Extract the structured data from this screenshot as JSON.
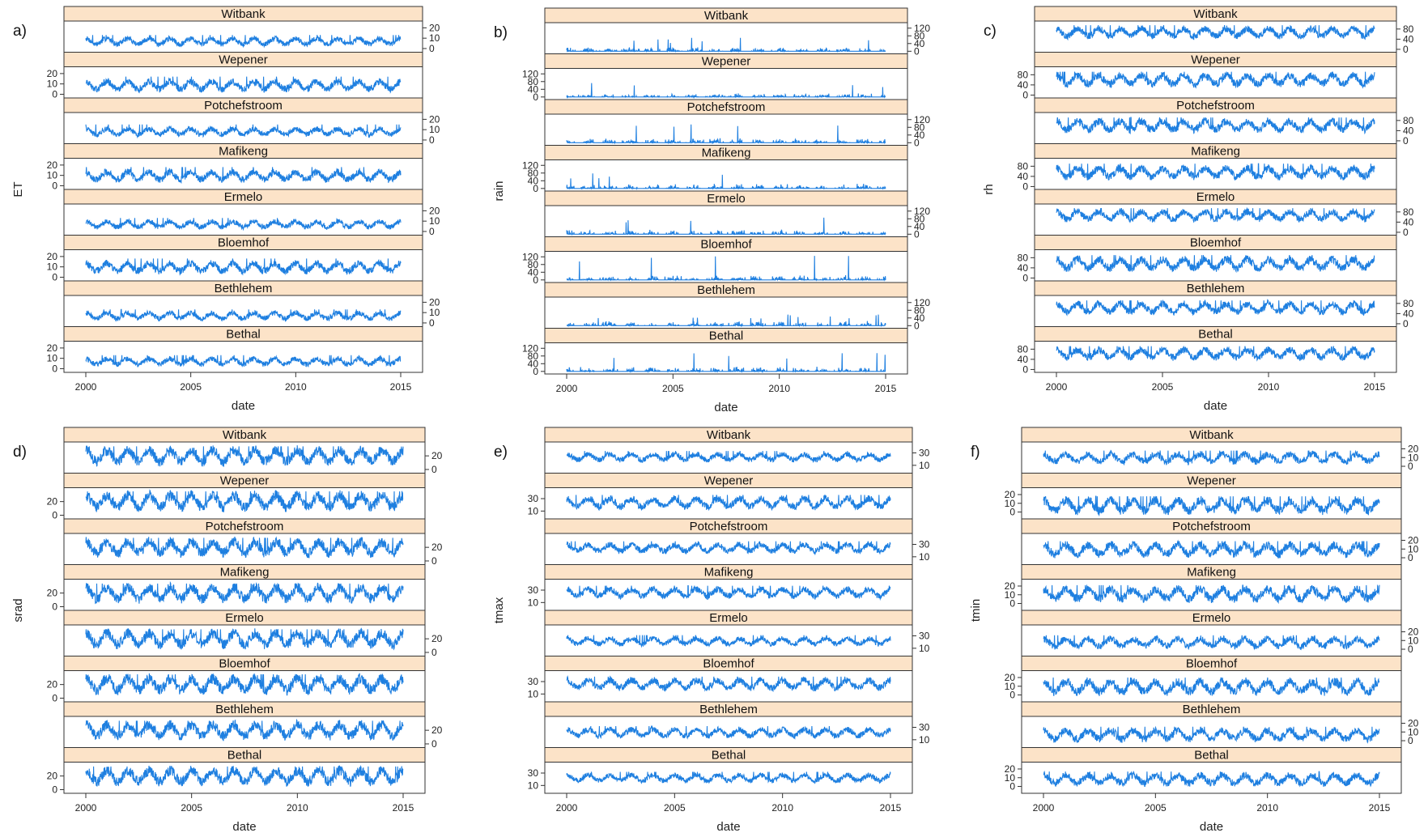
{
  "figure": {
    "panel_letters": [
      "a)",
      "b)",
      "c)",
      "d)",
      "e)",
      "f)"
    ],
    "series_color": "#1e7fe0",
    "strip_color": "#fce3c8"
  },
  "chart_data": [
    {
      "type": "line",
      "panel": "a)",
      "ylabel": "ET",
      "xlabel": "date",
      "x_range": [
        2000,
        2015
      ],
      "x_ticks": [
        2000,
        2005,
        2010,
        2015
      ],
      "y_ticks": [
        0,
        10,
        20
      ],
      "ylim": [
        -2,
        25
      ],
      "seasonal": true,
      "series": [
        {
          "name": "Witbank",
          "low": 2,
          "high": 11,
          "spike": 13
        },
        {
          "name": "Wepener",
          "low": 2,
          "high": 14,
          "spike": 17
        },
        {
          "name": "Potchefstroom",
          "low": 3,
          "high": 12,
          "spike": 15
        },
        {
          "name": "Mafikeng",
          "low": 3,
          "high": 15,
          "spike": 18
        },
        {
          "name": "Ermelo",
          "low": 2,
          "high": 11,
          "spike": 13
        },
        {
          "name": "Bloemhof",
          "low": 3,
          "high": 15,
          "spike": 18
        },
        {
          "name": "Bethlehem",
          "low": 2,
          "high": 11,
          "spike": 13
        },
        {
          "name": "Bethal",
          "low": 2,
          "high": 11,
          "spike": 13
        }
      ]
    },
    {
      "type": "line",
      "panel": "b)",
      "ylabel": "rain",
      "xlabel": "date",
      "x_range": [
        2000,
        2015
      ],
      "x_ticks": [
        2000,
        2005,
        2010,
        2015
      ],
      "y_ticks": [
        0,
        40,
        80,
        120
      ],
      "ylim": [
        -5,
        140
      ],
      "seasonal": false,
      "series": [
        {
          "name": "Witbank",
          "low": 0,
          "high": 25,
          "spike": 70
        },
        {
          "name": "Wepener",
          "low": 0,
          "high": 20,
          "spike": 85
        },
        {
          "name": "Potchefstroom",
          "low": 0,
          "high": 25,
          "spike": 120
        },
        {
          "name": "Mafikeng",
          "low": 0,
          "high": 25,
          "spike": 80
        },
        {
          "name": "Ermelo",
          "low": 0,
          "high": 25,
          "spike": 100
        },
        {
          "name": "Bloemhof",
          "low": 0,
          "high": 25,
          "spike": 125
        },
        {
          "name": "Bethlehem",
          "low": 0,
          "high": 25,
          "spike": 60
        },
        {
          "name": "Bethal",
          "low": 0,
          "high": 25,
          "spike": 110
        }
      ]
    },
    {
      "type": "line",
      "panel": "c)",
      "ylabel": "rh",
      "xlabel": "date",
      "x_range": [
        2000,
        2015
      ],
      "x_ticks": [
        2000,
        2005,
        2010,
        2015
      ],
      "y_ticks": [
        0,
        40,
        80
      ],
      "ylim": [
        -5,
        105
      ],
      "seasonal": true,
      "series": [
        {
          "name": "Witbank",
          "low": 40,
          "high": 88,
          "spike": 95
        },
        {
          "name": "Wepener",
          "low": 30,
          "high": 85,
          "spike": 92
        },
        {
          "name": "Potchefstroom",
          "low": 30,
          "high": 85,
          "spike": 92
        },
        {
          "name": "Mafikeng",
          "low": 25,
          "high": 80,
          "spike": 90
        },
        {
          "name": "Ermelo",
          "low": 40,
          "high": 88,
          "spike": 95
        },
        {
          "name": "Bloemhof",
          "low": 25,
          "high": 82,
          "spike": 90
        },
        {
          "name": "Bethlehem",
          "low": 35,
          "high": 85,
          "spike": 92
        },
        {
          "name": "Bethal",
          "low": 35,
          "high": 85,
          "spike": 92
        }
      ]
    },
    {
      "type": "line",
      "panel": "d)",
      "ylabel": "srad",
      "xlabel": "date",
      "x_range": [
        2000,
        2015
      ],
      "x_ticks": [
        2000,
        2005,
        2010,
        2015
      ],
      "y_ticks": [
        0,
        20
      ],
      "ylim": [
        -3,
        38
      ],
      "seasonal": true,
      "series": [
        {
          "name": "Witbank",
          "low": 5,
          "high": 32,
          "spike": 34
        },
        {
          "name": "Wepener",
          "low": 5,
          "high": 33,
          "spike": 35
        },
        {
          "name": "Potchefstroom",
          "low": 5,
          "high": 32,
          "spike": 34
        },
        {
          "name": "Mafikeng",
          "low": 5,
          "high": 32,
          "spike": 34
        },
        {
          "name": "Ermelo",
          "low": 5,
          "high": 32,
          "spike": 34
        },
        {
          "name": "Bloemhof",
          "low": 5,
          "high": 33,
          "spike": 35
        },
        {
          "name": "Bethlehem",
          "low": 5,
          "high": 32,
          "spike": 34
        },
        {
          "name": "Bethal",
          "low": 5,
          "high": 32,
          "spike": 34
        }
      ]
    },
    {
      "type": "line",
      "panel": "e)",
      "ylabel": "tmax",
      "xlabel": "date",
      "x_range": [
        2000,
        2015
      ],
      "x_ticks": [
        2000,
        2005,
        2010,
        2015
      ],
      "y_ticks": [
        10,
        30
      ],
      "ylim": [
        0,
        45
      ],
      "seasonal": true,
      "series": [
        {
          "name": "Witbank",
          "low": 15,
          "high": 30,
          "spike": 33
        },
        {
          "name": "Wepener",
          "low": 12,
          "high": 33,
          "spike": 36
        },
        {
          "name": "Potchefstroom",
          "low": 15,
          "high": 32,
          "spike": 35
        },
        {
          "name": "Mafikeng",
          "low": 16,
          "high": 34,
          "spike": 37
        },
        {
          "name": "Ermelo",
          "low": 13,
          "high": 28,
          "spike": 31
        },
        {
          "name": "Bloemhof",
          "low": 15,
          "high": 35,
          "spike": 38
        },
        {
          "name": "Bethlehem",
          "low": 12,
          "high": 29,
          "spike": 32
        },
        {
          "name": "Bethal",
          "low": 14,
          "high": 29,
          "spike": 32
        }
      ]
    },
    {
      "type": "line",
      "panel": "f)",
      "ylabel": "tmin",
      "xlabel": "date",
      "x_range": [
        2000,
        2015
      ],
      "x_ticks": [
        2000,
        2005,
        2010,
        2015
      ],
      "y_ticks": [
        0,
        10,
        20
      ],
      "ylim": [
        -6,
        26
      ],
      "seasonal": true,
      "series": [
        {
          "name": "Witbank",
          "low": 2,
          "high": 16,
          "spike": 18
        },
        {
          "name": "Wepener",
          "low": -3,
          "high": 16,
          "spike": 18
        },
        {
          "name": "Potchefstroom",
          "low": 0,
          "high": 17,
          "spike": 19
        },
        {
          "name": "Mafikeng",
          "low": 1,
          "high": 19,
          "spike": 21
        },
        {
          "name": "Ermelo",
          "low": 0,
          "high": 14,
          "spike": 16
        },
        {
          "name": "Bloemhof",
          "low": -1,
          "high": 18,
          "spike": 20
        },
        {
          "name": "Bethlehem",
          "low": -2,
          "high": 14,
          "spike": 16
        },
        {
          "name": "Bethal",
          "low": 0,
          "high": 15,
          "spike": 17
        }
      ]
    }
  ]
}
